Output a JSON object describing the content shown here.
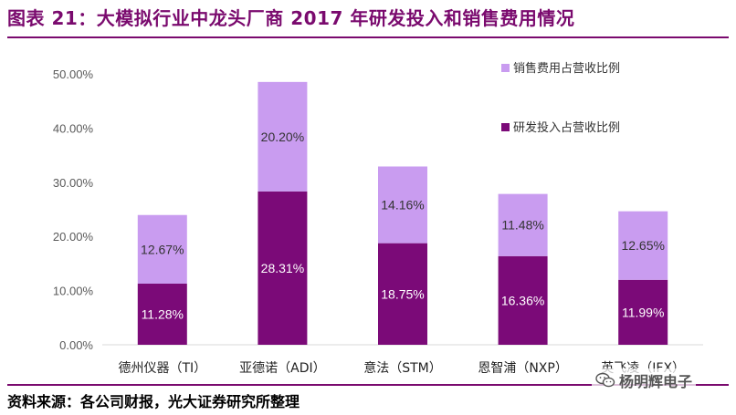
{
  "header": {
    "title": "图表 21：大模拟行业中龙头厂商 2017 年研发投入和销售费用情况"
  },
  "footer": {
    "source": "资料来源：各公司财报，光大证券研究所整理",
    "watermark_text": "杨明辉电子",
    "watermark_icon": "wechat-icon"
  },
  "chart_data": {
    "type": "bar",
    "stacked": true,
    "categories": [
      "德州仪器（TI）",
      "亚德诺（ADI）",
      "意法（STM）",
      "恩智浦（NXP）",
      "英飞凌（IFX）"
    ],
    "series": [
      {
        "name": "研发投入占营收比例",
        "values": [
          11.28,
          28.31,
          18.75,
          16.36,
          11.99
        ],
        "color": "#7b0a78"
      },
      {
        "name": "销售费用占营收比例",
        "values": [
          12.67,
          20.2,
          14.16,
          11.48,
          12.65
        ],
        "color": "#c99cf0"
      }
    ],
    "value_labels": {
      "研发投入占营收比例": [
        "11.28%",
        "28.31%",
        "18.75%",
        "16.36%",
        "11.99%"
      ],
      "销售费用占营收比例": [
        "12.67%",
        "20.20%",
        "14.16%",
        "11.48%",
        "12.65%"
      ]
    },
    "ylim": [
      0,
      50
    ],
    "yticks": [
      0,
      10,
      20,
      30,
      40,
      50
    ],
    "ytick_labels": [
      "0.00%",
      "10.00%",
      "20.00%",
      "30.00%",
      "40.00%",
      "50.00%"
    ],
    "legend_position": "top-right",
    "grid": false,
    "label_colors": {
      "研发投入占营收比例": "#ffffff",
      "销售费用占营收比例": "#333333"
    }
  }
}
